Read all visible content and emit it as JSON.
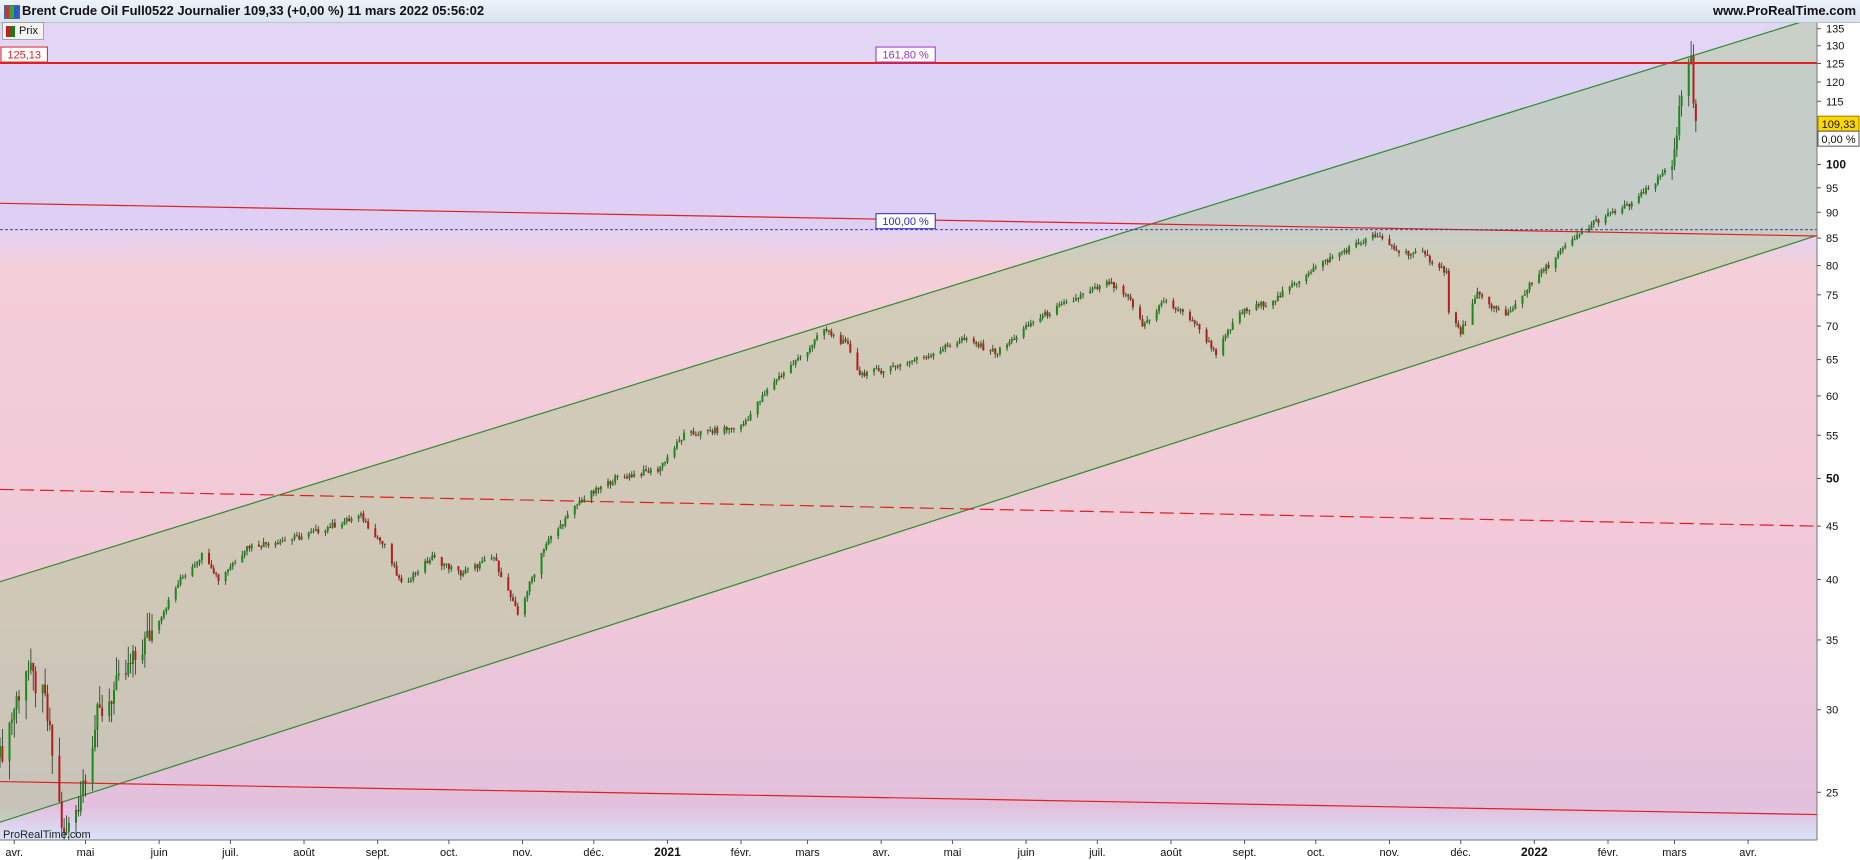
{
  "header": {
    "title": "Brent Crude Oil Full0522 Journalier 109,33 (+0,00 %) 11 mars 2022 05:56:02",
    "brand": "www.ProRealTime.com",
    "watermark": "ProRealTime.com",
    "legend_label": "Prix",
    "legend_icon": "candlestick-icon"
  },
  "colors": {
    "up": "#1a8a1a",
    "down": "#b01e1e",
    "channel": "#2e8b2e",
    "resistance": "#e02020",
    "fib_label": "#9b2fc2",
    "fib_label_100": "#2a2ac0",
    "price_tag_bg": "#ffd700"
  },
  "chart_data": {
    "type": "candlestick",
    "title": "Brent Crude Oil Full0522 Journalier",
    "y_scale": "log",
    "ylim": [
      22.5,
      137
    ],
    "y_ticks": [
      25,
      30,
      35,
      40,
      45,
      50,
      55,
      60,
      65,
      70,
      75,
      80,
      85,
      90,
      95,
      100,
      115,
      120,
      125,
      130,
      135
    ],
    "y_ticks_bold": [
      50,
      100
    ],
    "x_range": [
      "2020-03-26",
      "2022-04-30"
    ],
    "x_ticks": [
      {
        "date": "2020-04-01",
        "label": "avr."
      },
      {
        "date": "2020-05-01",
        "label": "mai"
      },
      {
        "date": "2020-06-01",
        "label": "juin"
      },
      {
        "date": "2020-07-01",
        "label": "juil."
      },
      {
        "date": "2020-08-01",
        "label": "août"
      },
      {
        "date": "2020-09-01",
        "label": "sept."
      },
      {
        "date": "2020-10-01",
        "label": "oct."
      },
      {
        "date": "2020-11-01",
        "label": "nov."
      },
      {
        "date": "2020-12-01",
        "label": "déc."
      },
      {
        "date": "2021-01-01",
        "label": "2021",
        "bold": true
      },
      {
        "date": "2021-02-01",
        "label": "févr."
      },
      {
        "date": "2021-03-01",
        "label": "mars"
      },
      {
        "date": "2021-04-01",
        "label": "avr."
      },
      {
        "date": "2021-05-01",
        "label": "mai"
      },
      {
        "date": "2021-06-01",
        "label": "juin"
      },
      {
        "date": "2021-07-01",
        "label": "juil."
      },
      {
        "date": "2021-08-01",
        "label": "août"
      },
      {
        "date": "2021-09-01",
        "label": "sept."
      },
      {
        "date": "2021-10-01",
        "label": "oct."
      },
      {
        "date": "2021-11-01",
        "label": "nov."
      },
      {
        "date": "2021-12-01",
        "label": "déc."
      },
      {
        "date": "2022-01-01",
        "label": "2022",
        "bold": true
      },
      {
        "date": "2022-02-01",
        "label": "févr."
      },
      {
        "date": "2022-03-01",
        "label": "mars"
      },
      {
        "date": "2022-04-01",
        "label": "avr."
      }
    ],
    "price_path": [
      [
        "2020-03-26",
        27.0
      ],
      [
        "2020-04-06",
        33.0
      ],
      [
        "2020-04-14",
        30.5
      ],
      [
        "2020-04-22",
        22.5
      ],
      [
        "2020-04-28",
        24.5
      ],
      [
        "2020-05-06",
        29.5
      ],
      [
        "2020-05-20",
        33.0
      ],
      [
        "2020-06-02",
        37.0
      ],
      [
        "2020-06-10",
        40.0
      ],
      [
        "2020-06-20",
        42.5
      ],
      [
        "2020-06-26",
        40.0
      ],
      [
        "2020-07-08",
        43.0
      ],
      [
        "2020-08-01",
        44.0
      ],
      [
        "2020-08-12",
        45.0
      ],
      [
        "2020-08-25",
        46.0
      ],
      [
        "2020-09-04",
        43.0
      ],
      [
        "2020-09-11",
        39.5
      ],
      [
        "2020-09-24",
        42.0
      ],
      [
        "2020-10-06",
        40.5
      ],
      [
        "2020-10-20",
        42.0
      ],
      [
        "2020-10-30",
        37.0
      ],
      [
        "2020-11-02",
        38.5
      ],
      [
        "2020-11-10",
        43.0
      ],
      [
        "2020-11-25",
        47.5
      ],
      [
        "2020-12-10",
        50.0
      ],
      [
        "2020-12-28",
        51.0
      ],
      [
        "2021-01-08",
        55.0
      ],
      [
        "2021-01-20",
        55.5
      ],
      [
        "2021-02-01",
        56.0
      ],
      [
        "2021-02-15",
        62.0
      ],
      [
        "2021-02-28",
        66.0
      ],
      [
        "2021-03-08",
        69.5
      ],
      [
        "2021-03-18",
        67.0
      ],
      [
        "2021-03-23",
        63.0
      ],
      [
        "2021-04-01",
        63.5
      ],
      [
        "2021-04-20",
        65.5
      ],
      [
        "2021-05-05",
        68.0
      ],
      [
        "2021-05-20",
        66.0
      ],
      [
        "2021-06-05",
        71.0
      ],
      [
        "2021-06-25",
        75.0
      ],
      [
        "2021-07-06",
        77.0
      ],
      [
        "2021-07-15",
        74.0
      ],
      [
        "2021-07-20",
        70.0
      ],
      [
        "2021-07-29",
        74.0
      ],
      [
        "2021-08-10",
        71.0
      ],
      [
        "2021-08-20",
        66.0
      ],
      [
        "2021-08-30",
        72.0
      ],
      [
        "2021-09-15",
        74.5
      ],
      [
        "2021-09-28",
        79.0
      ],
      [
        "2021-10-10",
        82.0
      ],
      [
        "2021-10-26",
        85.5
      ],
      [
        "2021-11-05",
        82.5
      ],
      [
        "2021-11-15",
        82.0
      ],
      [
        "2021-11-25",
        79.0
      ],
      [
        "2021-11-26",
        72.0
      ],
      [
        "2021-12-01",
        69.0
      ],
      [
        "2021-12-08",
        75.0
      ],
      [
        "2021-12-20",
        71.5
      ],
      [
        "2021-12-31",
        77.0
      ],
      [
        "2022-01-12",
        82.5
      ],
      [
        "2022-01-26",
        88.0
      ],
      [
        "2022-02-10",
        91.5
      ],
      [
        "2022-02-21",
        96.0
      ],
      [
        "2022-02-28",
        101.0
      ],
      [
        "2022-03-03",
        112.0
      ],
      [
        "2022-03-07",
        122.0
      ],
      [
        "2022-03-08",
        128.0
      ],
      [
        "2022-03-09",
        112.0
      ],
      [
        "2022-03-10",
        109.33
      ]
    ],
    "last_price": 109.33,
    "last_price_label": "109,33",
    "change_label": "0,00 %",
    "fibonacci": [
      {
        "level_label": "161,80 %",
        "price": 125.13,
        "price_label": "125,13"
      },
      {
        "level_label": "100,00 %",
        "price": 86.6
      }
    ],
    "trendlines": [
      {
        "name": "channel-upper",
        "start": [
          "2020-03-26",
          39.8
        ],
        "end": [
          "2022-04-30",
          138.5
        ]
      },
      {
        "name": "channel-lower",
        "start": [
          "2020-03-26",
          23.4
        ],
        "end": [
          "2022-04-30",
          85.5
        ]
      },
      {
        "name": "resistance-upper",
        "start": [
          "2020-03-26",
          91.8
        ],
        "end": [
          "2022-04-30",
          85.4
        ]
      },
      {
        "name": "resistance-mid-dashed",
        "start": [
          "2020-03-26",
          48.8
        ],
        "end": [
          "2022-04-30",
          45.0
        ]
      },
      {
        "name": "support-lower",
        "start": [
          "2020-03-26",
          25.6
        ],
        "end": [
          "2022-04-30",
          23.8
        ]
      }
    ]
  }
}
